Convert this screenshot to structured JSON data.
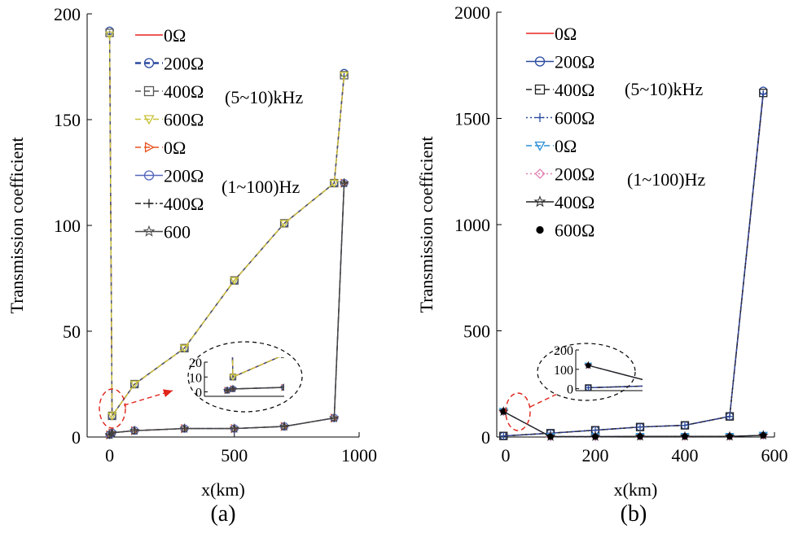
{
  "chart_data": [
    {
      "type": "line",
      "panel_label": "(a)",
      "xlabel": "x(km)",
      "ylabel": "Transmission coefficient",
      "xlim": [
        -90,
        1000
      ],
      "ylim": [
        0,
        200
      ],
      "xticks": [
        0,
        500,
        1000
      ],
      "yticks": [
        0,
        50,
        100,
        150,
        200
      ],
      "band_labels": [
        "(5~10)kHz",
        "(1~100)Hz"
      ],
      "legend_position": "top-left",
      "series": [
        {
          "name": "0Ω",
          "band": "(5~10)kHz",
          "color": "#e8231e",
          "marker": "none",
          "dash": "solid",
          "x": [
            0,
            10,
            100,
            300,
            500,
            700,
            900,
            940
          ],
          "y": [
            190,
            10,
            25,
            42,
            74,
            101,
            120,
            171
          ]
        },
        {
          "name": "200Ω",
          "band": "(5~10)kHz",
          "color": "#2a4a9f",
          "marker": "circle",
          "dash": "dashed",
          "x": [
            0,
            10,
            100,
            300,
            500,
            700,
            900,
            940
          ],
          "y": [
            192,
            10,
            25,
            42,
            74,
            101,
            120,
            172
          ]
        },
        {
          "name": "400Ω",
          "band": "(5~10)kHz",
          "color": "#555555",
          "marker": "square",
          "dash": "dashed",
          "x": [
            0,
            10,
            100,
            300,
            500,
            700,
            900,
            940
          ],
          "y": [
            191,
            10,
            25,
            42,
            74,
            101,
            120,
            171
          ]
        },
        {
          "name": "600Ω",
          "band": "(5~10)kHz",
          "color": "#c9c23a",
          "marker": "triangle-down",
          "dash": "dashed",
          "x": [
            0,
            10,
            100,
            300,
            500,
            700,
            900,
            940
          ],
          "y": [
            190,
            10,
            25,
            42,
            74,
            101,
            120,
            171
          ]
        },
        {
          "name": "0Ω",
          "band": "(1~100)Hz",
          "color": "#e8531e",
          "marker": "triangle-right",
          "dash": "dashed",
          "x": [
            0,
            10,
            100,
            300,
            500,
            700,
            900,
            940
          ],
          "y": [
            1,
            2,
            3,
            4,
            4,
            5,
            9,
            120
          ]
        },
        {
          "name": "200Ω",
          "band": "(1~100)Hz",
          "color": "#5566bb",
          "marker": "circle",
          "dash": "solid",
          "x": [
            0,
            10,
            100,
            300,
            500,
            700,
            900,
            940
          ],
          "y": [
            1,
            2,
            3,
            4,
            4,
            5,
            9,
            120
          ]
        },
        {
          "name": "400Ω",
          "band": "(1~100)Hz",
          "color": "#222222",
          "marker": "plus",
          "dash": "dashdot",
          "x": [
            0,
            10,
            100,
            300,
            500,
            700,
            900,
            940
          ],
          "y": [
            1,
            2,
            3,
            4,
            4,
            5,
            9,
            120
          ]
        },
        {
          "name": "600",
          "band": "(1~100)Hz",
          "color": "#444444",
          "marker": "star",
          "dash": "solid",
          "x": [
            0,
            10,
            100,
            300,
            500,
            700,
            900,
            940
          ],
          "y": [
            1,
            2,
            3,
            4,
            4,
            5,
            9,
            120
          ]
        }
      ],
      "inset": {
        "yticks": [
          0,
          10,
          20
        ],
        "ylim": [
          -3,
          20
        ]
      }
    },
    {
      "type": "line",
      "panel_label": "(b)",
      "xlabel": "x(km)",
      "ylabel": "Transmission coefficient",
      "xlim": [
        -20,
        600
      ],
      "ylim": [
        0,
        2000
      ],
      "xticks": [
        0,
        200,
        400,
        600
      ],
      "yticks": [
        0,
        500,
        1000,
        1500,
        2000
      ],
      "band_labels": [
        "(5~10)kHz",
        "(1~100)Hz"
      ],
      "legend_position": "top-left",
      "series": [
        {
          "name": "0Ω",
          "band": "(5~10)kHz",
          "color": "#e8231e",
          "marker": "none",
          "dash": "solid",
          "x": [
            -5,
            100,
            200,
            300,
            400,
            500,
            575
          ],
          "y": [
            5,
            18,
            32,
            47,
            55,
            97,
            1620
          ]
        },
        {
          "name": "200Ω",
          "band": "(5~10)kHz",
          "color": "#2a4a9f",
          "marker": "circle",
          "dash": "solid",
          "x": [
            -5,
            100,
            200,
            300,
            400,
            500,
            575
          ],
          "y": [
            5,
            18,
            32,
            47,
            55,
            97,
            1630
          ]
        },
        {
          "name": "400Ω",
          "band": "(5~10)kHz",
          "color": "#222222",
          "marker": "square",
          "dash": "dashed",
          "x": [
            -5,
            100,
            200,
            300,
            400,
            500,
            575
          ],
          "y": [
            5,
            18,
            32,
            47,
            55,
            97,
            1620
          ]
        },
        {
          "name": "600Ω",
          "band": "(5~10)kHz",
          "color": "#2a4a9f",
          "marker": "plus",
          "dash": "dotted",
          "x": [
            -5,
            100,
            200,
            300,
            400,
            500,
            575
          ],
          "y": [
            5,
            18,
            32,
            47,
            55,
            97,
            1615
          ]
        },
        {
          "name": "0Ω",
          "band": "(1~100)Hz",
          "color": "#2c8fd6",
          "marker": "triangle-down",
          "dash": "dashed",
          "x": [
            -5,
            100,
            200,
            300,
            400,
            500,
            575
          ],
          "y": [
            120,
            2,
            2,
            3,
            3,
            3,
            8
          ]
        },
        {
          "name": "200Ω",
          "band": "(1~100)Hz",
          "color": "#e07fb0",
          "marker": "diamond",
          "dash": "dotted",
          "x": [
            -5,
            100,
            200,
            300,
            400,
            500,
            575
          ],
          "y": [
            120,
            2,
            2,
            3,
            3,
            3,
            8
          ]
        },
        {
          "name": "400Ω",
          "band": "(1~100)Hz",
          "color": "#222222",
          "marker": "star",
          "dash": "solid",
          "x": [
            -5,
            100,
            200,
            300,
            400,
            500,
            575
          ],
          "y": [
            120,
            2,
            2,
            3,
            3,
            3,
            8
          ]
        },
        {
          "name": "600Ω",
          "band": "(1~100)Hz",
          "color": "#000000",
          "marker": "dot",
          "dash": "none",
          "x": [
            -5,
            100,
            200,
            300,
            400,
            500,
            575
          ],
          "y": [
            120,
            2,
            2,
            3,
            3,
            3,
            8
          ]
        }
      ],
      "inset": {
        "yticks": [
          0,
          100,
          200
        ],
        "ylim": [
          -10,
          200
        ]
      }
    }
  ]
}
